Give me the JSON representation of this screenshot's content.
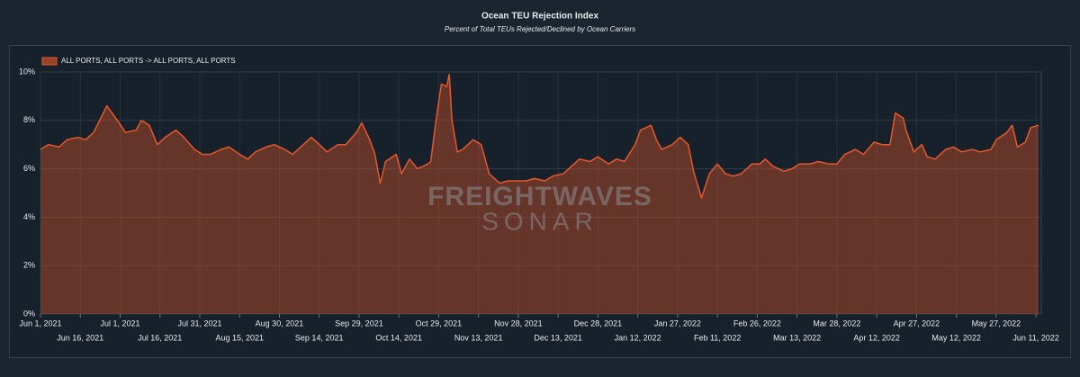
{
  "chart_data": {
    "type": "area",
    "title": "Ocean TEU Rejection Index",
    "subtitle": "Percent of Total TEUs Rejected/Declined by Ocean Carriers",
    "watermark": {
      "line1": "FREIGHTWAVES",
      "line2": "SONAR"
    },
    "x": [
      "2021-06-01",
      "2021-06-04",
      "2021-06-08",
      "2021-06-11",
      "2021-06-15",
      "2021-06-18",
      "2021-06-21",
      "2021-06-26",
      "2021-06-30",
      "2021-07-03",
      "2021-07-07",
      "2021-07-09",
      "2021-07-12",
      "2021-07-15",
      "2021-07-18",
      "2021-07-22",
      "2021-07-25",
      "2021-07-29",
      "2021-08-01",
      "2021-08-04",
      "2021-08-08",
      "2021-08-11",
      "2021-08-15",
      "2021-08-18",
      "2021-08-21",
      "2021-08-25",
      "2021-08-28",
      "2021-09-01",
      "2021-09-04",
      "2021-09-07",
      "2021-09-11",
      "2021-09-14",
      "2021-09-17",
      "2021-09-21",
      "2021-09-24",
      "2021-09-28",
      "2021-09-30",
      "2021-10-03",
      "2021-10-05",
      "2021-10-07",
      "2021-10-09",
      "2021-10-13",
      "2021-10-15",
      "2021-10-18",
      "2021-10-21",
      "2021-10-25",
      "2021-10-26",
      "2021-10-28",
      "2021-10-30",
      "2021-11-01",
      "2021-11-02",
      "2021-11-03",
      "2021-11-05",
      "2021-11-07",
      "2021-11-11",
      "2021-11-14",
      "2021-11-17",
      "2021-11-21",
      "2021-11-24",
      "2021-11-28",
      "2021-12-01",
      "2021-12-04",
      "2021-12-08",
      "2021-12-11",
      "2021-12-15",
      "2021-12-18",
      "2021-12-21",
      "2021-12-25",
      "2021-12-28",
      "2022-01-01",
      "2022-01-04",
      "2022-01-07",
      "2022-01-11",
      "2022-01-13",
      "2022-01-17",
      "2022-01-19",
      "2022-01-21",
      "2022-01-25",
      "2022-01-28",
      "2022-01-31",
      "2022-02-02",
      "2022-02-05",
      "2022-02-08",
      "2022-02-11",
      "2022-02-14",
      "2022-02-17",
      "2022-02-20",
      "2022-02-24",
      "2022-02-27",
      "2022-03-01",
      "2022-03-04",
      "2022-03-08",
      "2022-03-11",
      "2022-03-14",
      "2022-03-18",
      "2022-03-21",
      "2022-03-25",
      "2022-03-28",
      "2022-03-31",
      "2022-04-04",
      "2022-04-07",
      "2022-04-11",
      "2022-04-14",
      "2022-04-17",
      "2022-04-19",
      "2022-04-22",
      "2022-04-23",
      "2022-04-26",
      "2022-04-29",
      "2022-05-01",
      "2022-05-04",
      "2022-05-08",
      "2022-05-11",
      "2022-05-14",
      "2022-05-18",
      "2022-05-21",
      "2022-05-25",
      "2022-05-27",
      "2022-05-31",
      "2022-06-02",
      "2022-06-04",
      "2022-06-07",
      "2022-06-09",
      "2022-06-12"
    ],
    "series": [
      {
        "name": "ALL PORTS, ALL PORTS -> ALL PORTS, ALL PORTS",
        "color": "#e8572a",
        "values": [
          6.8,
          7.0,
          6.9,
          7.2,
          7.3,
          7.2,
          7.5,
          8.6,
          8.0,
          7.5,
          7.6,
          8.0,
          7.8,
          7.0,
          7.3,
          7.6,
          7.3,
          6.8,
          6.6,
          6.6,
          6.8,
          6.9,
          6.6,
          6.4,
          6.7,
          6.9,
          7.0,
          6.8,
          6.6,
          6.9,
          7.3,
          7.0,
          6.7,
          7.0,
          7.0,
          7.5,
          7.9,
          7.2,
          6.6,
          5.4,
          6.3,
          6.6,
          5.8,
          6.4,
          6.0,
          6.2,
          6.3,
          8.0,
          9.5,
          9.4,
          9.9,
          8.0,
          6.7,
          6.8,
          7.2,
          7.0,
          5.8,
          5.4,
          5.5,
          5.5,
          5.5,
          5.6,
          5.5,
          5.7,
          5.8,
          6.1,
          6.4,
          6.3,
          6.5,
          6.2,
          6.4,
          6.3,
          7.0,
          7.6,
          7.8,
          7.2,
          6.8,
          7.0,
          7.3,
          7.0,
          5.9,
          4.8,
          5.8,
          6.2,
          5.8,
          5.7,
          5.8,
          6.2,
          6.2,
          6.4,
          6.1,
          5.9,
          6.0,
          6.2,
          6.2,
          6.3,
          6.2,
          6.2,
          6.6,
          6.8,
          6.6,
          7.1,
          7.0,
          7.0,
          8.3,
          8.1,
          7.6,
          6.7,
          7.0,
          6.5,
          6.4,
          6.8,
          6.9,
          6.7,
          6.8,
          6.7,
          6.8,
          7.2,
          7.5,
          7.8,
          6.9,
          7.1,
          7.7,
          7.8
        ]
      }
    ],
    "xlim": [
      "2021-06-01",
      "2022-06-13"
    ],
    "xticks": [
      {
        "value": "2021-06-01",
        "label": "Jun 1, 2021"
      },
      {
        "value": "2021-06-16",
        "label": "Jun 16, 2021"
      },
      {
        "value": "2021-07-01",
        "label": "Jul 1, 2021"
      },
      {
        "value": "2021-07-16",
        "label": "Jul 16, 2021"
      },
      {
        "value": "2021-07-31",
        "label": "Jul 31, 2021"
      },
      {
        "value": "2021-08-15",
        "label": "Aug 15, 2021"
      },
      {
        "value": "2021-08-30",
        "label": "Aug 30, 2021"
      },
      {
        "value": "2021-09-14",
        "label": "Sep 14, 2021"
      },
      {
        "value": "2021-09-29",
        "label": "Sep 29, 2021"
      },
      {
        "value": "2021-10-14",
        "label": "Oct 14, 2021"
      },
      {
        "value": "2021-10-29",
        "label": "Oct 29, 2021"
      },
      {
        "value": "2021-11-13",
        "label": "Nov 13, 2021"
      },
      {
        "value": "2021-11-28",
        "label": "Nov 28, 2021"
      },
      {
        "value": "2021-12-13",
        "label": "Dec 13, 2021"
      },
      {
        "value": "2021-12-28",
        "label": "Dec 28, 2021"
      },
      {
        "value": "2022-01-12",
        "label": "Jan 12, 2022"
      },
      {
        "value": "2022-01-27",
        "label": "Jan 27, 2022"
      },
      {
        "value": "2022-02-11",
        "label": "Feb 11, 2022"
      },
      {
        "value": "2022-02-26",
        "label": "Feb 26, 2022"
      },
      {
        "value": "2022-03-13",
        "label": "Mar 13, 2022"
      },
      {
        "value": "2022-03-28",
        "label": "Mar 28, 2022"
      },
      {
        "value": "2022-04-12",
        "label": "Apr 12, 2022"
      },
      {
        "value": "2022-04-27",
        "label": "Apr 27, 2022"
      },
      {
        "value": "2022-05-12",
        "label": "May 12, 2022"
      },
      {
        "value": "2022-05-27",
        "label": "May 27, 2022"
      },
      {
        "value": "2022-06-11",
        "label": "Jun 11, 2022"
      }
    ],
    "ylim": [
      0,
      10
    ],
    "yticks": [
      {
        "value": 0,
        "label": "0%"
      },
      {
        "value": 2,
        "label": "2%"
      },
      {
        "value": 4,
        "label": "4%"
      },
      {
        "value": 6,
        "label": "6%"
      },
      {
        "value": 8,
        "label": "8%"
      },
      {
        "value": 10,
        "label": "10%"
      }
    ],
    "grid": true,
    "legend": "top-left"
  }
}
